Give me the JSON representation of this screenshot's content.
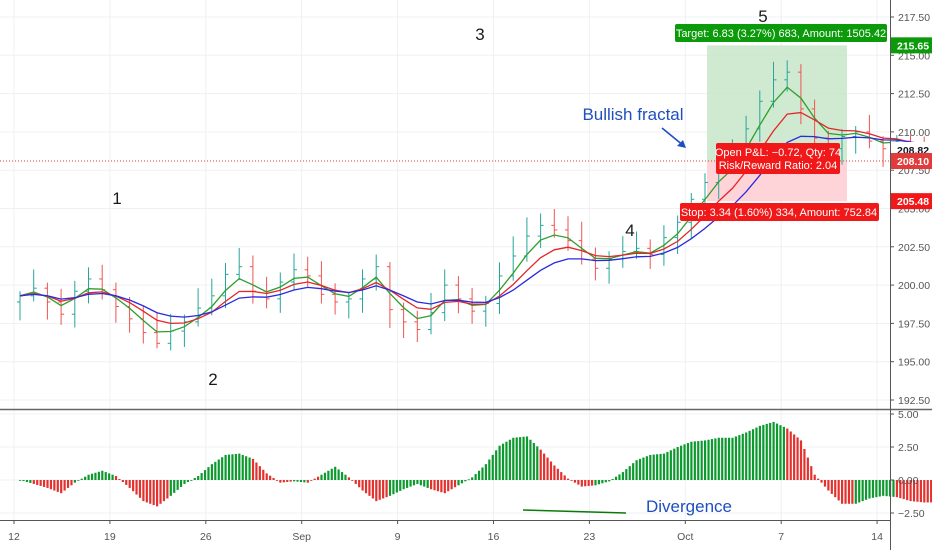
{
  "colors": {
    "up": "#26a69a",
    "up_candle": "#26a69a",
    "down_candle": "#ef5350",
    "hist_up": "#0c9a2e",
    "hist_down": "#e3312e",
    "ma_fast": "#2e9f2e",
    "ma_mid": "#e2262a",
    "ma_slow": "#2a2adf",
    "target_zone": "#c8e6c9",
    "stop_zone": "#ffcdd2",
    "target_label": "#0a9a0a",
    "stop_label": "#f01818",
    "annotation_blue": "#1f4fbf",
    "divergence_line": "#0b7a0b",
    "price_line": "#e23b3b"
  },
  "chart_data": [
    {
      "type": "candlestick",
      "panel": "price",
      "x_ticks": [
        "12",
        "19",
        "26",
        "Sep",
        "9",
        "16",
        "23",
        "Oct",
        "7",
        "14"
      ],
      "y_ticks": [
        "192.50",
        "195.00",
        "197.50",
        "200.00",
        "202.50",
        "205.00",
        "207.50",
        "210.00",
        "212.50",
        "215.00",
        "217.50"
      ],
      "ylim": [
        192.0,
        218.0
      ],
      "current_price": 208.1,
      "price_labels": [
        {
          "text": "215.65",
          "value": 215.65,
          "color": "#0a9a0a"
        },
        {
          "text": "208.82",
          "value": 208.82,
          "color": "#000000"
        },
        {
          "text": "208.10",
          "value": 208.1,
          "color": "#e23b3b"
        },
        {
          "text": "205.48",
          "value": 205.48,
          "color": "#f01818"
        }
      ],
      "wave_labels": [
        {
          "text": "1",
          "date": 19,
          "price": 204.1
        },
        {
          "text": "2",
          "date": 26,
          "price": 194.7
        },
        {
          "text": "3",
          "date": 45,
          "price": 216.0
        },
        {
          "text": "4",
          "date": 61,
          "price": 202.3
        },
        {
          "text": "5",
          "date": 73,
          "price": 218.0
        }
      ],
      "annotations": {
        "bullish_fractal": "Bullish fractal",
        "target_text": "Target: 6.83 (3.27%) 683, Amount: 1505.42",
        "stop_text": "Stop: 3.34 (1.60%) 334, Amount: 752.84",
        "pnl_text": "Open P&L: −0.72, Qty: 74",
        "rr_text": "Risk/Reward Ratio: 2.04"
      },
      "position": {
        "entry": 208.1,
        "target": 215.65,
        "stop": 205.48
      },
      "series": [
        {
          "name": "",
          "kind": "ma_fast"
        },
        {
          "name": "",
          "kind": "ma_mid"
        },
        {
          "name": "",
          "kind": "ma_slow"
        }
      ],
      "close": [
        199.3,
        199.8,
        198.9,
        198.1,
        199.6,
        200.4,
        199.7,
        198.6,
        197.8,
        196.9,
        196.2,
        197.0,
        197.6,
        198.5,
        199.3,
        200.7,
        201.2,
        199.6,
        199.1,
        200.2,
        201.0,
        200.6,
        199.4,
        198.9,
        199.1,
        200.4,
        201.2,
        198.4,
        197.6,
        197.1,
        198.2,
        200.0,
        199.1,
        198.3,
        198.8,
        200.6,
        201.9,
        203.2,
        203.9,
        203.6,
        202.9,
        201.7,
        201.1,
        201.7,
        202.2,
        202.4,
        202.0,
        203.1,
        204.1,
        205.6,
        206.7,
        207.9,
        208.4,
        210.2,
        212.0,
        213.4,
        213.9,
        211.5,
        209.6,
        208.9,
        209.7,
        210.0,
        209.4,
        208.9,
        209.4,
        208.8,
        208.5,
        207.6,
        207.9,
        207.2,
        206.4,
        206.2,
        206.8,
        207.0,
        206.9,
        207.6,
        208.0,
        208.3,
        208.6,
        208.1
      ]
    },
    {
      "type": "histogram",
      "panel": "oscillator",
      "y_ticks": [
        "5.00",
        "2.50",
        "0.00",
        "−2.50"
      ],
      "ylim": [
        -3.0,
        5.2
      ],
      "label": "Divergence",
      "values": [
        0.0,
        -0.3,
        -0.6,
        -1.0,
        -0.2,
        0.4,
        0.7,
        0.3,
        -0.6,
        -1.6,
        -2.0,
        -1.2,
        -0.3,
        0.3,
        1.2,
        1.9,
        2.0,
        1.6,
        0.5,
        -0.2,
        -0.1,
        -0.2,
        0.4,
        1.0,
        0.2,
        -0.8,
        -1.6,
        -1.2,
        -0.7,
        -0.3,
        -0.7,
        -1.0,
        -0.4,
        0.2,
        1.2,
        2.6,
        3.2,
        3.3,
        2.3,
        1.1,
        0.1,
        -0.5,
        -0.4,
        -0.1,
        0.6,
        1.5,
        1.9,
        2.0,
        2.5,
        2.9,
        3.0,
        3.2,
        3.2,
        3.6,
        4.1,
        4.4,
        3.9,
        3.0,
        0.4,
        -0.8,
        -1.8,
        -1.8,
        -1.4,
        -1.2,
        -1.3,
        -1.6,
        -1.7,
        -1.7,
        -1.9,
        -2.0,
        -1.4,
        -1.1,
        -0.6,
        -0.2,
        0.2,
        0.5,
        0.7
      ]
    }
  ]
}
